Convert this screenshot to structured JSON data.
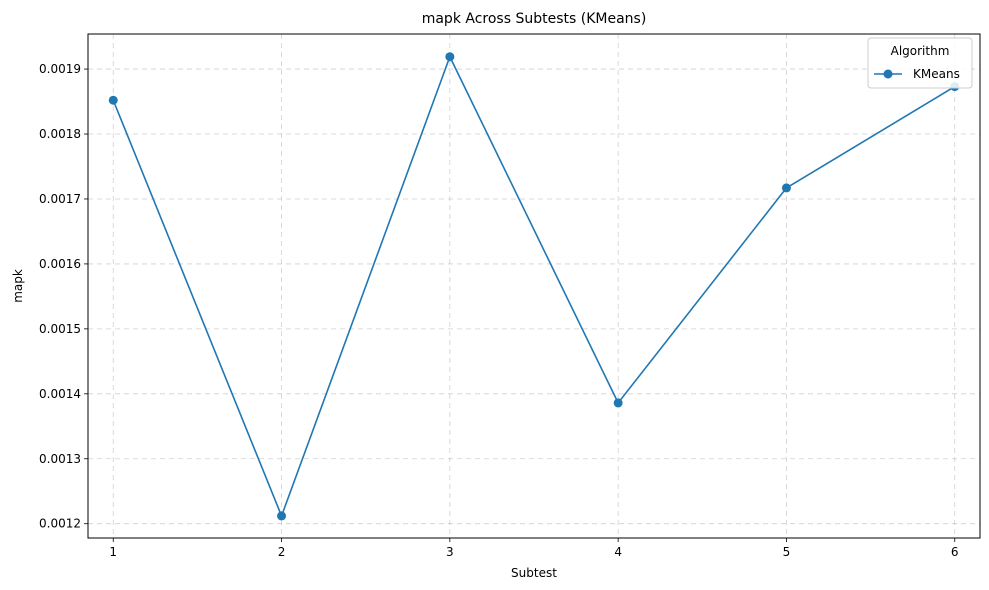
{
  "chart_data": {
    "type": "line",
    "title": "mapk Across Subtests (KMeans)",
    "xlabel": "Subtest",
    "ylabel": "mapk",
    "x": [
      1,
      2,
      3,
      4,
      5,
      6
    ],
    "xlim": [
      0.85,
      6.15
    ],
    "ylim": [
      0.001178,
      0.001954
    ],
    "yticks": [
      0.0012,
      0.0013,
      0.0014,
      0.0015,
      0.0016,
      0.0017,
      0.0018,
      0.0019
    ],
    "ytick_labels": [
      "0.0012",
      "0.0013",
      "0.0014",
      "0.0015",
      "0.0016",
      "0.0017",
      "0.0018",
      "0.0019"
    ],
    "grid": true,
    "legend": {
      "title": "Algorithm",
      "placement": "top-right"
    },
    "series": [
      {
        "name": "KMeans",
        "color": "#1f77b4",
        "marker": "circle",
        "values": [
          0.001852,
          0.001212,
          0.001919,
          0.001386,
          0.001717,
          0.001873
        ]
      }
    ]
  }
}
